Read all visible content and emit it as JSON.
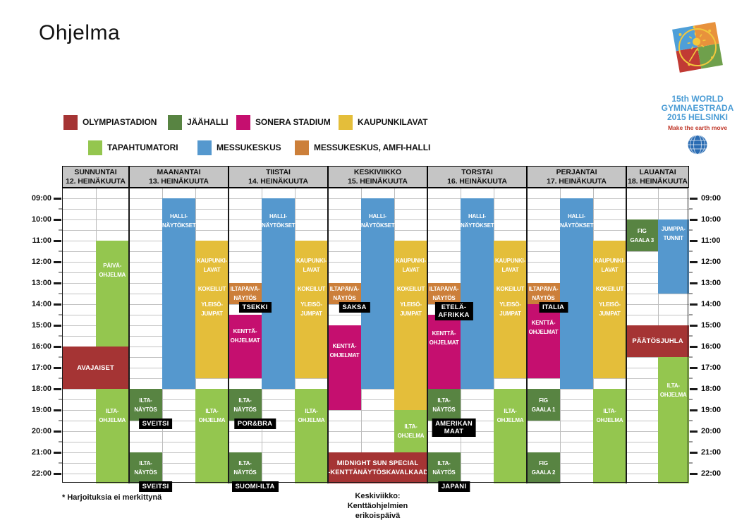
{
  "title": "Ohjelma",
  "logo": {
    "lines": [
      "15th WORLD",
      "GYMNAESTRADA",
      "2015 HELSINKI"
    ],
    "tagline": "Make the earth move"
  },
  "colors": {
    "olympiastadion": "#A53434",
    "jaahalli": "#588442",
    "sonera": "#C50F6F",
    "kaupunkilavat": "#E4BE3A",
    "tapahtumatori": "#94C64F",
    "messukeskus": "#5598CE",
    "amfi": "#CC7F3A"
  },
  "legend": {
    "rows": [
      [
        {
          "venue": "olympiastadion",
          "label": "OLYMPIASTADION"
        },
        {
          "venue": "jaahalli",
          "label": "JÄÄHALLI"
        },
        {
          "venue": "sonera",
          "label": "SONERA STADIUM"
        },
        {
          "venue": "kaupunkilavat",
          "label": "KAUPUNKILAVAT"
        }
      ],
      [
        {
          "venue": "tapahtumatori",
          "label": "TAPAHTUMATORI"
        },
        {
          "venue": "messukeskus",
          "label": "MESSUKESKUS"
        },
        {
          "venue": "amfi",
          "label": "MESSUKESKUS, AMFI-HALLI"
        }
      ]
    ]
  },
  "schedule": {
    "time_labels": [
      "09:00",
      "10:00",
      "11:00",
      "12:00",
      "13:00",
      "14:00",
      "15:00",
      "16:00",
      "17:00",
      "18:00",
      "19:00",
      "20:00",
      "21:00",
      "22:00"
    ],
    "days": [
      {
        "name": "SUNNUNTAI",
        "date": "12. HEINÄKUUTA",
        "subcols": 2,
        "events": [
          {
            "col": 1,
            "start": 11,
            "end": 16,
            "venue": "tapahtumatori",
            "lines": [
              "PÄIVÄ-",
              "OHJELMA"
            ],
            "pos": "upper"
          },
          {
            "col": 0,
            "span": 2,
            "start": 16,
            "end": 18,
            "venue": "olympiastadion",
            "lines": [
              "AVAJAISET"
            ],
            "pos": "center",
            "big": true
          },
          {
            "col": 1,
            "start": 18,
            "end": 22.5,
            "venue": "tapahtumatori",
            "lines": [
              "ILTA-",
              "OHJELMA"
            ],
            "pos": "upper"
          }
        ],
        "tags": []
      },
      {
        "name": "MAANANTAI",
        "date": "13. HEINÄKUUTA",
        "subcols": 3,
        "events": [
          {
            "col": 1,
            "start": 9,
            "end": 18,
            "venue": "messukeskus",
            "lines": [
              "HALLI-",
              "NÄYTÖKSET"
            ],
            "pos": "top"
          },
          {
            "col": 2,
            "start": 11,
            "end": 17.5,
            "venue": "kaupunkilavat",
            "lines": [
              "KAUPUNKI-",
              "LAVAT",
              "KOKEILUT",
              "YLEISÖ-",
              "JUMPAT"
            ],
            "pos": "kaupunki"
          },
          {
            "col": 0,
            "start": 18,
            "end": 19.5,
            "venue": "jaahalli",
            "lines": [
              "ILTA-",
              "NÄYTÖS"
            ],
            "pos": "center"
          },
          {
            "col": 2,
            "start": 18,
            "end": 22.5,
            "venue": "tapahtumatori",
            "lines": [
              "ILTA-",
              "OHJELMA"
            ],
            "pos": "upper"
          },
          {
            "col": 0,
            "start": 21,
            "end": 22.5,
            "venue": "jaahalli",
            "lines": [
              "ILTA-",
              "NÄYTÖS"
            ],
            "pos": "center"
          }
        ],
        "tags": [
          {
            "col": 0,
            "at": 19.5,
            "lines": [
              "SVEITSI"
            ]
          },
          {
            "col": 0,
            "at": 22.5,
            "lines": [
              "SVEITSI"
            ]
          }
        ]
      },
      {
        "name": "TIISTAI",
        "date": "14. HEINÄKUUTA",
        "subcols": 3,
        "events": [
          {
            "col": 1,
            "start": 9,
            "end": 18,
            "venue": "messukeskus",
            "lines": [
              "HALLI-",
              "NÄYTÖKSET"
            ],
            "pos": "top"
          },
          {
            "col": 2,
            "start": 11,
            "end": 17.5,
            "venue": "kaupunkilavat",
            "lines": [
              "KAUPUNKI-",
              "LAVAT",
              "KOKEILUT",
              "YLEISÖ-",
              "JUMPAT"
            ],
            "pos": "kaupunki"
          },
          {
            "col": 0,
            "start": 13,
            "end": 14,
            "venue": "amfi",
            "lines": [
              "ILTAPÄIVÄ-",
              "NÄYTÖS"
            ],
            "pos": "center"
          },
          {
            "col": 0,
            "start": 14.5,
            "end": 17.5,
            "venue": "sonera",
            "lines": [
              "KENTTÄ-",
              "OHJELMAT"
            ],
            "pos": "upper"
          },
          {
            "col": 0,
            "start": 18,
            "end": 19.5,
            "venue": "jaahalli",
            "lines": [
              "ILTA-",
              "NÄYTÖS"
            ],
            "pos": "center"
          },
          {
            "col": 2,
            "start": 18,
            "end": 22.5,
            "venue": "tapahtumatori",
            "lines": [
              "ILTA-",
              "OHJELMA"
            ],
            "pos": "upper"
          },
          {
            "col": 0,
            "start": 21,
            "end": 22.5,
            "venue": "jaahalli",
            "lines": [
              "ILTA-",
              "NÄYTÖS"
            ],
            "pos": "center"
          }
        ],
        "tags": [
          {
            "col": 0,
            "at": 14,
            "lines": [
              "TSEKKI"
            ]
          },
          {
            "col": 0,
            "at": 19.5,
            "lines": [
              "POR&BRA"
            ]
          },
          {
            "col": 0,
            "at": 22.5,
            "lines": [
              "SUOMI-ILTA"
            ]
          }
        ]
      },
      {
        "name": "KESKIVIIKKO",
        "date": "15. HEINÄKUUTA",
        "subcols": 3,
        "events": [
          {
            "col": 1,
            "start": 9,
            "end": 18,
            "venue": "messukeskus",
            "lines": [
              "HALLI-",
              "NÄYTÖKSET"
            ],
            "pos": "top"
          },
          {
            "col": 2,
            "start": 11,
            "end": 19,
            "venue": "kaupunkilavat",
            "lines": [
              "KAUPUNKI-",
              "LAVAT",
              "KOKEILUT",
              "YLEISÖ-",
              "JUMPAT"
            ],
            "pos": "kaupunki"
          },
          {
            "col": 0,
            "start": 13,
            "end": 14,
            "venue": "amfi",
            "lines": [
              "ILTAPÄIVÄ-",
              "NÄYTÖS"
            ],
            "pos": "center"
          },
          {
            "col": 0,
            "start": 15,
            "end": 19,
            "venue": "sonera",
            "lines": [
              "KENTTÄ-",
              "OHJELMAT"
            ],
            "pos": "upper"
          },
          {
            "col": 2,
            "start": 19,
            "end": 21,
            "venue": "tapahtumatori",
            "lines": [
              "ILTA-",
              "OHJELMA"
            ],
            "pos": "center"
          },
          {
            "col": 0,
            "span": 3,
            "start": 21,
            "end": 22.5,
            "venue": "olympiastadion",
            "lines": [
              "MIDNIGHT SUN SPECIAL",
              "-KENTTÄNÄYTÖSKAVALKAADI"
            ],
            "pos": "center",
            "big": true
          }
        ],
        "tags": [
          {
            "col": 0,
            "at": 14,
            "lines": [
              "SAKSA"
            ]
          }
        ]
      },
      {
        "name": "TORSTAI",
        "date": "16. HEINÄKUUTA",
        "subcols": 3,
        "events": [
          {
            "col": 1,
            "start": 9,
            "end": 18,
            "venue": "messukeskus",
            "lines": [
              "HALLI-",
              "NÄYTÖKSET"
            ],
            "pos": "top"
          },
          {
            "col": 2,
            "start": 11,
            "end": 17.5,
            "venue": "kaupunkilavat",
            "lines": [
              "KAUPUNKI-",
              "LAVAT",
              "KOKEILUT",
              "YLEISÖ-",
              "JUMPAT"
            ],
            "pos": "kaupunki"
          },
          {
            "col": 0,
            "start": 13,
            "end": 14,
            "venue": "amfi",
            "lines": [
              "ILTAPÄIVÄ-",
              "NÄYTÖS"
            ],
            "pos": "center"
          },
          {
            "col": 0,
            "start": 14.5,
            "end": 18,
            "venue": "sonera",
            "lines": [
              "KENTTÄ-",
              "OHJELMAT"
            ],
            "pos": "upper"
          },
          {
            "col": 0,
            "start": 18,
            "end": 19.5,
            "venue": "jaahalli",
            "lines": [
              "ILTA-",
              "NÄYTÖS"
            ],
            "pos": "center"
          },
          {
            "col": 2,
            "start": 18,
            "end": 22.5,
            "venue": "tapahtumatori",
            "lines": [
              "ILTA-",
              "OHJELMA"
            ],
            "pos": "upper"
          },
          {
            "col": 0,
            "start": 21,
            "end": 22.5,
            "venue": "jaahalli",
            "lines": [
              "ILTA-",
              "NÄYTÖS"
            ],
            "pos": "center"
          }
        ],
        "tags": [
          {
            "col": 0,
            "at": 14,
            "lines": [
              "ETELÄ-",
              "AFRIKKA"
            ]
          },
          {
            "col": 0,
            "at": 19.5,
            "lines": [
              "AMERIKAN",
              "MAAT"
            ]
          },
          {
            "col": 0,
            "at": 22.5,
            "lines": [
              "JAPANI"
            ]
          }
        ]
      },
      {
        "name": "PERJANTAI",
        "date": "17. HEINÄKUUTA",
        "subcols": 3,
        "events": [
          {
            "col": 1,
            "start": 9,
            "end": 18,
            "venue": "messukeskus",
            "lines": [
              "HALLI-",
              "NÄYTÖKSET"
            ],
            "pos": "top"
          },
          {
            "col": 2,
            "start": 11,
            "end": 17.5,
            "venue": "kaupunkilavat",
            "lines": [
              "KAUPUNKI-",
              "LAVAT",
              "KOKEILUT",
              "YLEISÖ-",
              "JUMPAT"
            ],
            "pos": "kaupunki"
          },
          {
            "col": 0,
            "start": 13,
            "end": 14,
            "venue": "amfi",
            "lines": [
              "ILTAPÄIVÄ-",
              "NÄYTÖS"
            ],
            "pos": "center"
          },
          {
            "col": 0,
            "start": 14,
            "end": 17.5,
            "venue": "sonera",
            "lines": [
              "KENTTÄ-",
              "OHJELMAT"
            ],
            "pos": "upper"
          },
          {
            "col": 0,
            "start": 18,
            "end": 19.5,
            "venue": "jaahalli",
            "lines": [
              "FIG",
              "GAALA 1"
            ],
            "pos": "center"
          },
          {
            "col": 2,
            "start": 18,
            "end": 22.5,
            "venue": "tapahtumatori",
            "lines": [
              "ILTA-",
              "OHJELMA"
            ],
            "pos": "upper"
          },
          {
            "col": 0,
            "start": 21,
            "end": 22.5,
            "venue": "jaahalli",
            "lines": [
              "FIG",
              "GAALA 2"
            ],
            "pos": "center"
          }
        ],
        "tags": [
          {
            "col": 0,
            "at": 14,
            "lines": [
              "ITALIA"
            ]
          }
        ]
      },
      {
        "name": "LAUANTAI",
        "date": "18. HEINÄKUUTA",
        "subcols": 2,
        "events": [
          {
            "col": 0,
            "start": 10,
            "end": 11.5,
            "venue": "jaahalli",
            "lines": [
              "FIG",
              "GAALA 3"
            ],
            "pos": "center"
          },
          {
            "col": 1,
            "start": 10,
            "end": 13.5,
            "venue": "messukeskus",
            "lines": [
              "JUMPPA-",
              "TUNNIT"
            ],
            "pos": "top"
          },
          {
            "col": 0,
            "span": 2,
            "start": 15,
            "end": 16.5,
            "venue": "olympiastadion",
            "lines": [
              "PÄÄTÖSJUHLA"
            ],
            "pos": "center",
            "big": true
          },
          {
            "col": 1,
            "start": 16.5,
            "end": 22.5,
            "venue": "tapahtumatori",
            "lines": [
              "ILTA-",
              "OHJELMA"
            ],
            "pos": "upper"
          }
        ],
        "tags": []
      }
    ]
  },
  "footnotes": {
    "left": "* Harjoituksia ei merkittynä",
    "center": [
      "Keskiviikko:",
      "Kenttäohjelmien erikoispäivä"
    ]
  }
}
